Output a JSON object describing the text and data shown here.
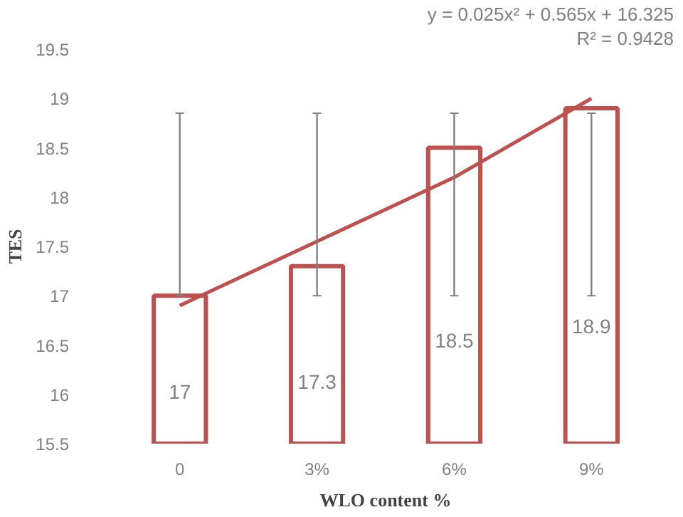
{
  "chart_data": {
    "type": "bar",
    "xlabel": "WLO content %",
    "ylabel": "TES",
    "categories": [
      "0",
      "3%",
      "6%",
      "9%"
    ],
    "series": [
      {
        "color": "#c0504d",
        "values": [
          17,
          17.3,
          18.5,
          18.9
        ],
        "value_labels": [
          "17",
          "17.3",
          "18.5",
          "18.9"
        ],
        "errors": [
          [
            17,
            18.85
          ],
          [
            17,
            18.85
          ],
          [
            17,
            18.85
          ],
          [
            17,
            18.85
          ]
        ]
      },
      {
        "type": "line",
        "color": "#c0504d",
        "x": [
          "0",
          "3%",
          "6%",
          "9%"
        ],
        "values": [
          16.9,
          17.55,
          18.2,
          19.0
        ]
      }
    ],
    "annotations": [
      "y = 0.025x² + 0.565x + 16.325",
      "R² = 0.9428"
    ],
    "ylim": [
      15.5,
      19.5
    ],
    "yticks": [
      15.5,
      16,
      16.5,
      17,
      17.5,
      18,
      18.5,
      19,
      19.5
    ],
    "grid": false
  }
}
